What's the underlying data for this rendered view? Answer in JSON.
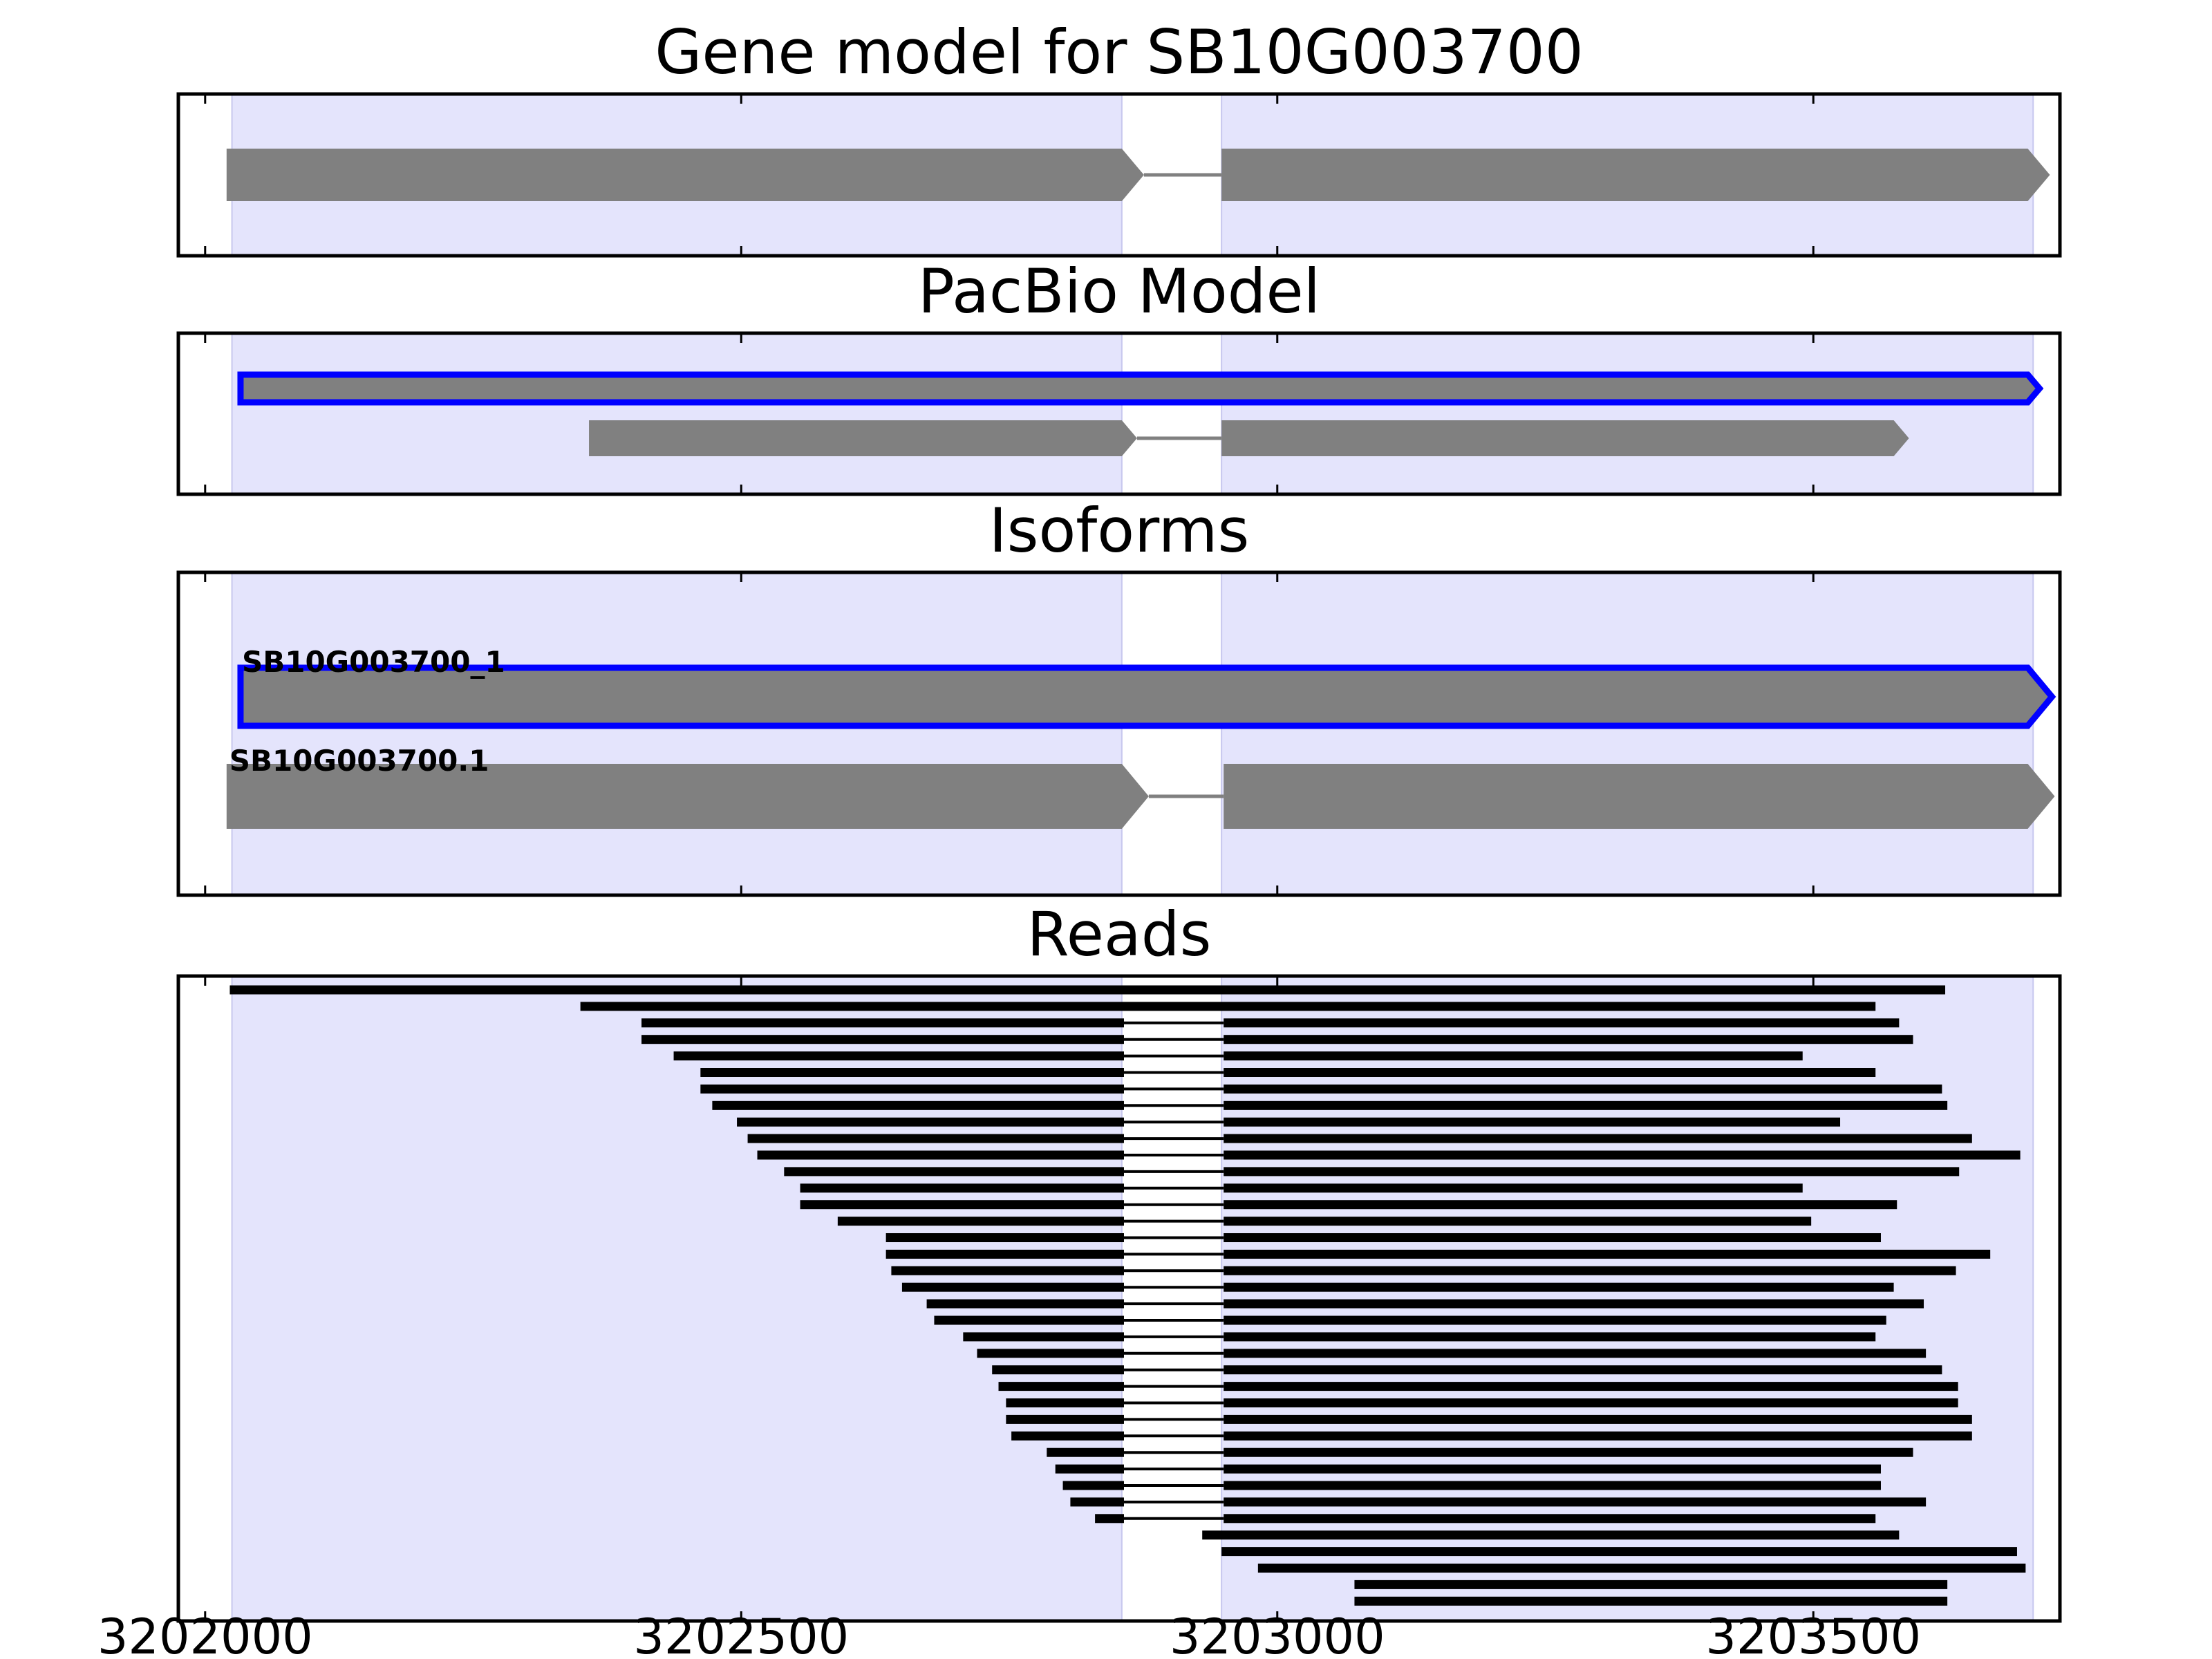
{
  "chart_data": {
    "type": "gene-track",
    "x_axis": {
      "range": [
        3201975,
        3203730
      ],
      "ticks": [
        3202000,
        3202500,
        3203000,
        3203500
      ],
      "tick_labels": [
        "3202000",
        "3202500",
        "3203000",
        "3203500"
      ]
    },
    "shaded_exon_regions": [
      [
        3202025,
        3202855
      ],
      [
        3202948,
        3203705
      ]
    ],
    "colors": {
      "exon": "#808080",
      "highlight": "#0000ff",
      "shade": "#e4e4fc",
      "read": "#000000"
    },
    "panels": [
      {
        "title": "Gene model for SB10G003700",
        "models": [
          {
            "label": "",
            "highlight": false,
            "exons": [
              [
                3202020,
                3202855
              ],
              [
                3202948,
                3203700
              ]
            ]
          }
        ]
      },
      {
        "title": "PacBio Model",
        "models": [
          {
            "label": "",
            "highlight": true,
            "exons": [
              [
                3202033,
                3203700
              ]
            ]
          },
          {
            "label": "",
            "highlight": false,
            "exons": [
              [
                3202358,
                3202855
              ],
              [
                3202948,
                3203575
              ]
            ]
          }
        ]
      },
      {
        "title": "Isoforms",
        "models": [
          {
            "label": "SB10G003700_1",
            "highlight": true,
            "exons": [
              [
                3202033,
                3203700
              ]
            ]
          },
          {
            "label": "SB10G003700.1",
            "highlight": false,
            "exons": [
              [
                3202020,
                3202855
              ],
              [
                3202950,
                3203700
              ]
            ]
          }
        ]
      }
    ],
    "reads_panel": {
      "title": "Reads",
      "reads": [
        {
          "start": 3202023,
          "end": 3203623,
          "spliced": false
        },
        {
          "start": 3202350,
          "end": 3203558,
          "spliced": false
        },
        {
          "start": 3202407,
          "end": 3203580,
          "spliced": true
        },
        {
          "start": 3202407,
          "end": 3203593,
          "spliced": true
        },
        {
          "start": 3202437,
          "end": 3203490,
          "spliced": true
        },
        {
          "start": 3202462,
          "end": 3203558,
          "spliced": true
        },
        {
          "start": 3202462,
          "end": 3203620,
          "spliced": true
        },
        {
          "start": 3202473,
          "end": 3203625,
          "spliced": true
        },
        {
          "start": 3202496,
          "end": 3203525,
          "spliced": true
        },
        {
          "start": 3202506,
          "end": 3203648,
          "spliced": true
        },
        {
          "start": 3202515,
          "end": 3203693,
          "spliced": true
        },
        {
          "start": 3202540,
          "end": 3203636,
          "spliced": true
        },
        {
          "start": 3202555,
          "end": 3203490,
          "spliced": true
        },
        {
          "start": 3202555,
          "end": 3203578,
          "spliced": true
        },
        {
          "start": 3202590,
          "end": 3203498,
          "spliced": true
        },
        {
          "start": 3202635,
          "end": 3203563,
          "spliced": true
        },
        {
          "start": 3202635,
          "end": 3203665,
          "spliced": true
        },
        {
          "start": 3202640,
          "end": 3203633,
          "spliced": true
        },
        {
          "start": 3202650,
          "end": 3203575,
          "spliced": true
        },
        {
          "start": 3202673,
          "end": 3203603,
          "spliced": true
        },
        {
          "start": 3202680,
          "end": 3203568,
          "spliced": true
        },
        {
          "start": 3202707,
          "end": 3203558,
          "spliced": true
        },
        {
          "start": 3202720,
          "end": 3203605,
          "spliced": true
        },
        {
          "start": 3202734,
          "end": 3203620,
          "spliced": true
        },
        {
          "start": 3202740,
          "end": 3203635,
          "spliced": true
        },
        {
          "start": 3202747,
          "end": 3203635,
          "spliced": true
        },
        {
          "start": 3202747,
          "end": 3203648,
          "spliced": true
        },
        {
          "start": 3202752,
          "end": 3203648,
          "spliced": true
        },
        {
          "start": 3202785,
          "end": 3203593,
          "spliced": true
        },
        {
          "start": 3202793,
          "end": 3203563,
          "spliced": true
        },
        {
          "start": 3202800,
          "end": 3203563,
          "spliced": true
        },
        {
          "start": 3202807,
          "end": 3203605,
          "spliced": true
        },
        {
          "start": 3202830,
          "end": 3203558,
          "spliced": true
        },
        {
          "start": 3202930,
          "end": 3203580,
          "spliced": false
        },
        {
          "start": 3202948,
          "end": 3203690,
          "spliced": false
        },
        {
          "start": 3202982,
          "end": 3203698,
          "spliced": false
        },
        {
          "start": 3203072,
          "end": 3203625,
          "spliced": false
        },
        {
          "start": 3203072,
          "end": 3203625,
          "spliced": false
        }
      ]
    }
  }
}
